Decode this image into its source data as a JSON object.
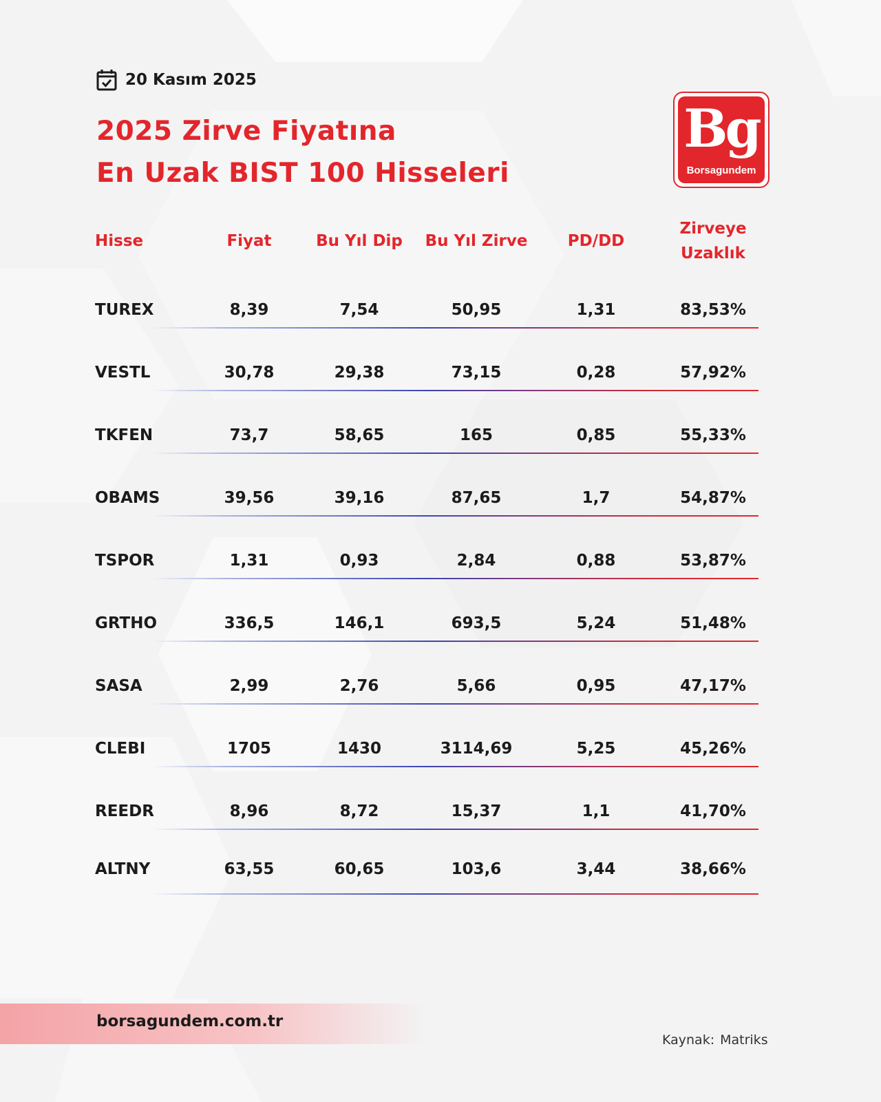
{
  "header": {
    "date": "20 Kasım 2025",
    "title_line1": "2025 Zirve Fiyatına",
    "title_line2": "En Uzak BIST 100 Hisseleri"
  },
  "logo": {
    "mark": "Bg",
    "name": "Borsagundem",
    "color": "#e3262b"
  },
  "table": {
    "columns": [
      "Hisse",
      "Fiyat",
      "Bu Yıl Dip",
      "Bu Yıl Zirve",
      "PD/DD",
      "Zirveye",
      "Uzaklık"
    ],
    "rows": [
      [
        "TUREX",
        "8,39",
        "7,54",
        "50,95",
        "1,31",
        "83,53%"
      ],
      [
        "VESTL",
        "30,78",
        "29,38",
        "73,15",
        "0,28",
        "57,92%"
      ],
      [
        "TKFEN",
        "73,7",
        "58,65",
        "165",
        "0,85",
        "55,33%"
      ],
      [
        "OBAMS",
        "39,56",
        "39,16",
        "87,65",
        "1,7",
        "54,87%"
      ],
      [
        "TSPOR",
        "1,31",
        "0,93",
        "2,84",
        "0,88",
        "53,87%"
      ],
      [
        "GRTHO",
        "336,5",
        "146,1",
        "693,5",
        "5,24",
        "51,48%"
      ],
      [
        "SASA",
        "2,99",
        "2,76",
        "5,66",
        "0,95",
        "47,17%"
      ],
      [
        "CLEBI",
        "1705",
        "1430",
        "3114,69",
        "5,25",
        "45,26%"
      ],
      [
        "REEDR",
        "8,96",
        "8,72",
        "15,37",
        "1,1",
        "41,70%"
      ],
      [
        "ALTNY",
        "63,55",
        "60,65",
        "103,6",
        "3,44",
        "38,66%"
      ]
    ]
  },
  "footer": {
    "site": "borsagundem.com.tr",
    "source_label": "Kaynak:",
    "source_value": "Matriks"
  },
  "colors": {
    "accent": "#e3262b",
    "text": "#1b1b1b",
    "background": "#f3f3f4"
  },
  "icons": {
    "date": "calendar-check-icon"
  }
}
